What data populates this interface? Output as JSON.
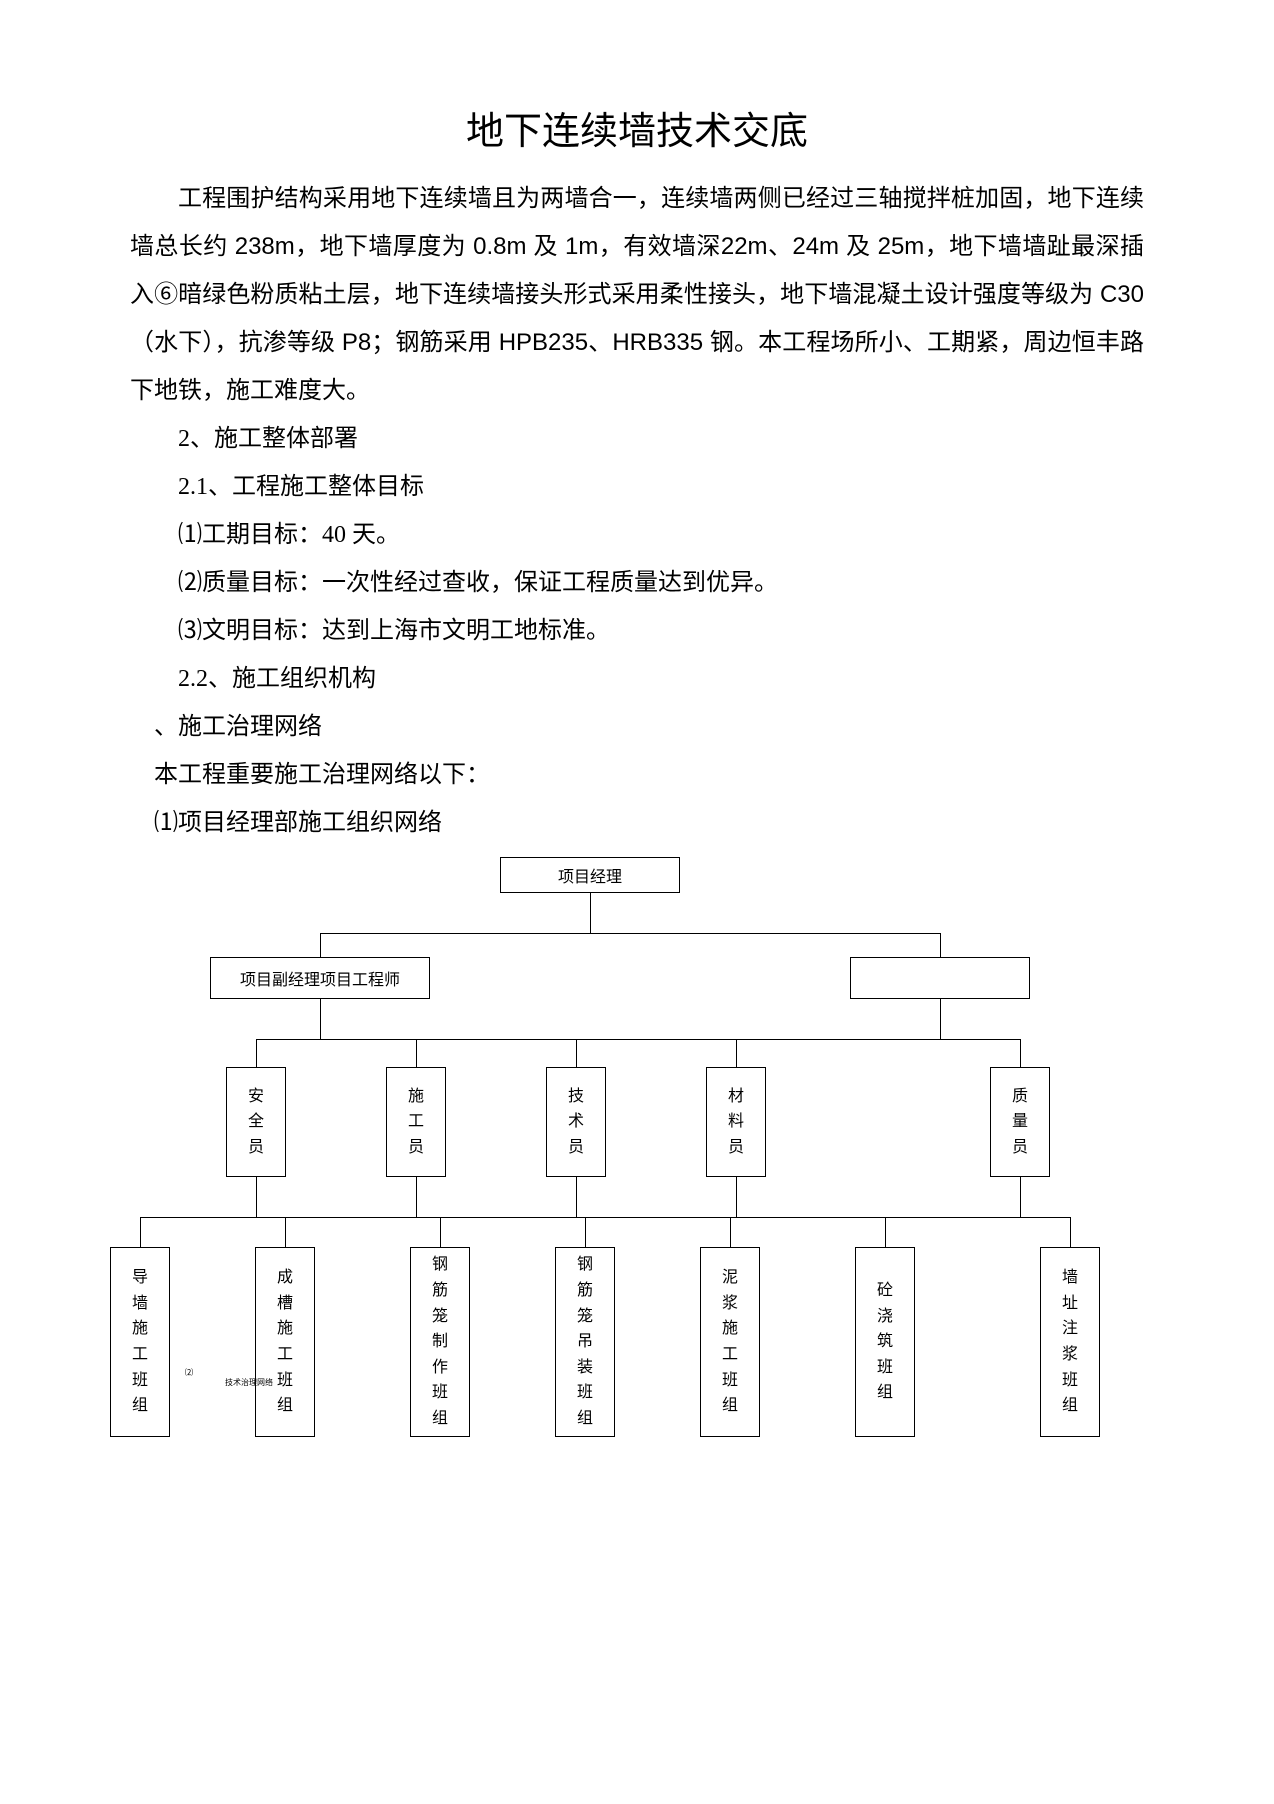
{
  "title": "地下连续墙技术交底",
  "intro": "工程围护结构采用地下连续墙且为两墙合一，连续墙两侧已经过三轴搅拌桩加固，地下连续墙总长约 238m，地下墙厚度为 0.8m 及 1m，有效墙深22m、24m 及 25m，地下墙墙趾最深插入⑥暗绿色粉质粘土层，地下连续墙接头形式采用柔性接头，地下墙混凝土设计强度等级为 C30（水下），抗渗等级 P8；钢筋采用 HPB235、HRB335 钢。本工程场所小、工期紧，周边恒丰路下地铁，施工难度大。",
  "s2": "2、施工整体部署",
  "s21": "2.1、工程施工整体目标",
  "g1": "⑴工期目标：40 天。",
  "g2": "⑵质量目标：一次性经过查收，保证工程质量达到优异。",
  "g3": "⑶文明目标：达到上海市文明工地标准。",
  "s22": "2.2、施工组织机构",
  "s22a": "、施工治理网络",
  "s22b": "本工程重要施工治理网络以下：",
  "s22c": "⑴项目经理部施工组织网络",
  "chart": {
    "top": "项目经理",
    "mid": "项目副经理项目工程师",
    "r2": [
      "安全员",
      "施工员",
      "技术员",
      "材料员",
      "质量员"
    ],
    "r3": [
      "导墙施工班组",
      "成槽施工班组",
      "钢筋笼制作班组",
      "钢筋笼吊装班组",
      "泥浆施工班组",
      "砼浇筑班组",
      "墙址注浆班组"
    ],
    "tiny1": "⑵",
    "tiny2": "技术治理网络"
  },
  "style": {
    "bg": "#ffffff",
    "border": "#000000",
    "title_size": 38,
    "body_size": 24,
    "chart_font": 16
  }
}
